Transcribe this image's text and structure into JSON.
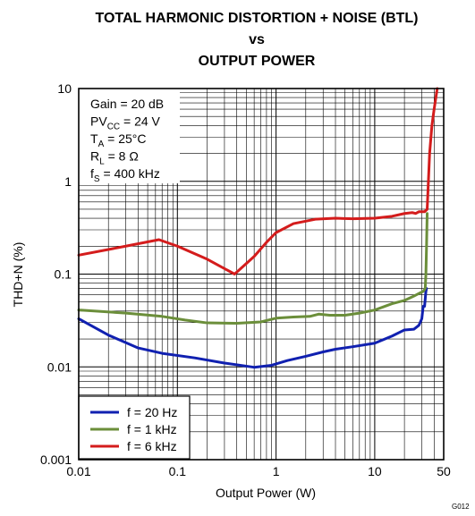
{
  "chart_data": {
    "type": "line",
    "title": [
      "TOTAL HARMONIC DISTORTION + NOISE (BTL)",
      "vs",
      "OUTPUT POWER"
    ],
    "xlabel": "Output Power (W)",
    "ylabel": "THD+N (%)",
    "xscale": "log",
    "yscale": "log",
    "xlim": [
      0.01,
      50
    ],
    "ylim": [
      0.001,
      10
    ],
    "grid": true,
    "x_ticks": [
      {
        "value": 0.01,
        "label": "0.01"
      },
      {
        "value": 0.1,
        "label": "0.1"
      },
      {
        "value": 1,
        "label": "1"
      },
      {
        "value": 10,
        "label": "10"
      },
      {
        "value": 50,
        "label": "50"
      }
    ],
    "y_ticks": [
      {
        "value": 0.001,
        "label": "0.001"
      },
      {
        "value": 0.01,
        "label": "0.01"
      },
      {
        "value": 0.1,
        "label": "0.1"
      },
      {
        "value": 1,
        "label": "1"
      },
      {
        "value": 10,
        "label": "10"
      }
    ],
    "conditions": [
      {
        "main": "Gain = 20 dB",
        "sub": "",
        "tail": ""
      },
      {
        "main": "PV",
        "sub": "CC",
        "tail": " = 24 V"
      },
      {
        "main": "T",
        "sub": "A",
        "tail": " = 25°C"
      },
      {
        "main": "R",
        "sub": "L",
        "tail": " = 8 Ω"
      },
      {
        "main": "f",
        "sub": "S",
        "tail": " = 400 kHz"
      }
    ],
    "legend_position": "bottom-left",
    "figure_code": "G012",
    "series": [
      {
        "name": "f = 20 Hz",
        "color": "#1020b0",
        "points": [
          [
            0.01,
            0.033
          ],
          [
            0.02,
            0.022
          ],
          [
            0.04,
            0.016
          ],
          [
            0.07,
            0.014
          ],
          [
            0.15,
            0.0125
          ],
          [
            0.3,
            0.011
          ],
          [
            0.6,
            0.0099
          ],
          [
            0.9,
            0.0104
          ],
          [
            1.3,
            0.0117
          ],
          [
            2,
            0.013
          ],
          [
            3,
            0.0145
          ],
          [
            4,
            0.0155
          ],
          [
            6,
            0.0165
          ],
          [
            10,
            0.018
          ],
          [
            15,
            0.0215
          ],
          [
            20,
            0.025
          ],
          [
            25,
            0.0255
          ],
          [
            28,
            0.028
          ],
          [
            30,
            0.033
          ],
          [
            31,
            0.045
          ],
          [
            32,
            0.045
          ],
          [
            33,
            0.065
          ],
          [
            33.5,
            0.07
          ]
        ]
      },
      {
        "name": "f = 1 kHz",
        "color": "#6b8e3a",
        "points": [
          [
            0.01,
            0.041
          ],
          [
            0.03,
            0.038
          ],
          [
            0.07,
            0.035
          ],
          [
            0.12,
            0.032
          ],
          [
            0.2,
            0.0298
          ],
          [
            0.4,
            0.0295
          ],
          [
            0.7,
            0.0305
          ],
          [
            1,
            0.0335
          ],
          [
            1.5,
            0.0345
          ],
          [
            2.2,
            0.035
          ],
          [
            2.7,
            0.037
          ],
          [
            3.5,
            0.036
          ],
          [
            5,
            0.036
          ],
          [
            7,
            0.038
          ],
          [
            10,
            0.041
          ],
          [
            15,
            0.048
          ],
          [
            20,
            0.052
          ],
          [
            25,
            0.058
          ],
          [
            29,
            0.063
          ],
          [
            31,
            0.065
          ],
          [
            32.5,
            0.07
          ],
          [
            33,
            0.1
          ],
          [
            33.5,
            0.2
          ],
          [
            34,
            0.45
          ]
        ]
      },
      {
        "name": "f = 6 kHz",
        "color": "#d41c1c",
        "points": [
          [
            0.01,
            0.16
          ],
          [
            0.03,
            0.2
          ],
          [
            0.065,
            0.235
          ],
          [
            0.1,
            0.2
          ],
          [
            0.2,
            0.145
          ],
          [
            0.38,
            0.1
          ],
          [
            0.6,
            0.155
          ],
          [
            0.8,
            0.22
          ],
          [
            1,
            0.28
          ],
          [
            1.5,
            0.35
          ],
          [
            2.5,
            0.39
          ],
          [
            4,
            0.4
          ],
          [
            6,
            0.395
          ],
          [
            10,
            0.4
          ],
          [
            15,
            0.42
          ],
          [
            20,
            0.45
          ],
          [
            24,
            0.46
          ],
          [
            26,
            0.45
          ],
          [
            28,
            0.47
          ],
          [
            32,
            0.47
          ],
          [
            34,
            0.5
          ],
          [
            35,
            1
          ],
          [
            36,
            2
          ],
          [
            38,
            4
          ],
          [
            40,
            6
          ],
          [
            43,
            10
          ]
        ]
      }
    ]
  }
}
